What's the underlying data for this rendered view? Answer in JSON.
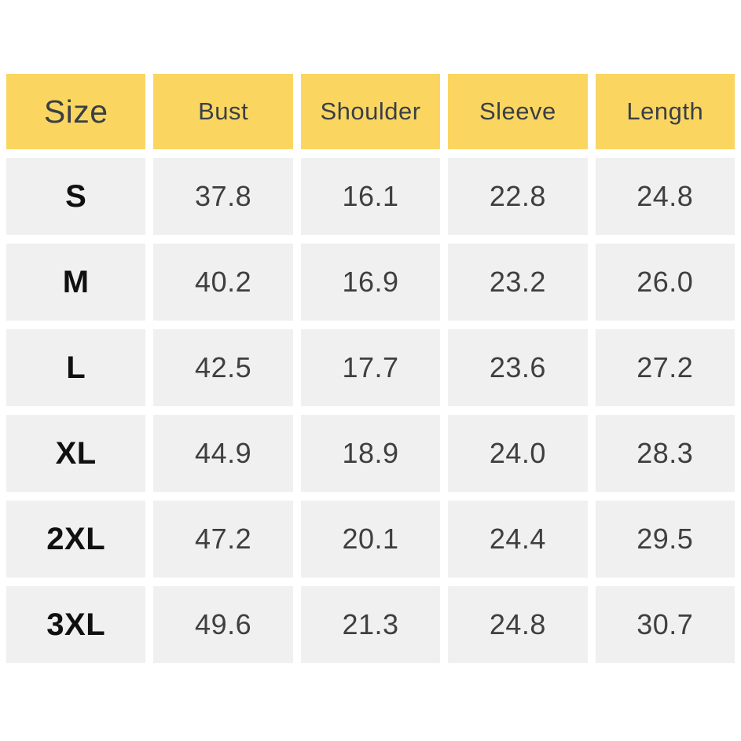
{
  "table": {
    "columns": [
      "Size",
      "Bust",
      "Shoulder",
      "Sleeve",
      "Length"
    ],
    "rows": [
      {
        "size": "S",
        "values": [
          "37.8",
          "16.1",
          "22.8",
          "24.8"
        ]
      },
      {
        "size": "M",
        "values": [
          "40.2",
          "16.9",
          "23.2",
          "26.0"
        ]
      },
      {
        "size": "L",
        "values": [
          "42.5",
          "17.7",
          "23.6",
          "27.2"
        ]
      },
      {
        "size": "XL",
        "values": [
          "44.9",
          "18.9",
          "24.0",
          "28.3"
        ]
      },
      {
        "size": "2XL",
        "values": [
          "47.2",
          "20.1",
          "24.4",
          "29.5"
        ]
      },
      {
        "size": "3XL",
        "values": [
          "49.6",
          "21.3",
          "24.8",
          "30.7"
        ]
      }
    ]
  },
  "colors": {
    "header_bg": "#FAD661",
    "cell_bg": "#F0F0F0",
    "header_text": "#3A3F46",
    "value_text": "#3F3F3F",
    "size_text": "#101010"
  },
  "chart_data": {
    "type": "table",
    "columns": [
      "Size",
      "Bust",
      "Shoulder",
      "Sleeve",
      "Length"
    ],
    "rows": [
      [
        "S",
        37.8,
        16.1,
        22.8,
        24.8
      ],
      [
        "M",
        40.2,
        16.9,
        23.2,
        26.0
      ],
      [
        "L",
        42.5,
        17.7,
        23.6,
        27.2
      ],
      [
        "XL",
        44.9,
        18.9,
        24.0,
        28.3
      ],
      [
        "2XL",
        47.2,
        20.1,
        24.4,
        29.5
      ],
      [
        "3XL",
        49.6,
        21.3,
        24.8,
        30.7
      ]
    ],
    "layout_hints": {
      "header_fill": "#FAD661",
      "body_fill": "#F0F0F0",
      "grid": "white gaps between cells, no borders"
    }
  }
}
